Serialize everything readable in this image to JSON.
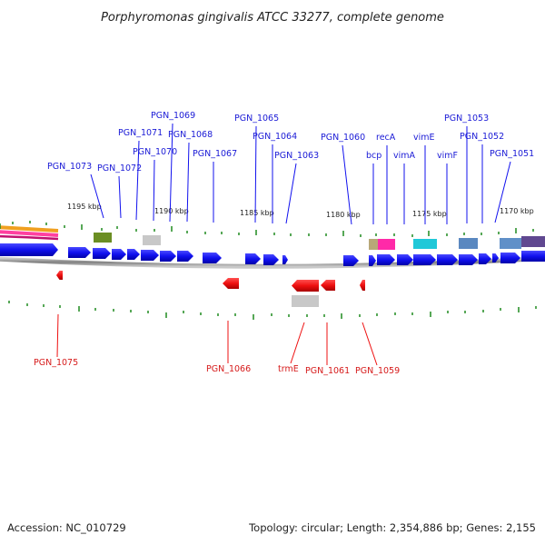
{
  "title": "Porphyromonas gingivalis ATCC 33277, complete genome",
  "footer": {
    "accession": "Accession: NC_010729",
    "summary": "Topology: circular; Length: 2,354,886 bp; Genes: 2,155"
  },
  "colors": {
    "forward": "#1010ee",
    "reverse": "#ee1010",
    "tick": "#1f8a1f",
    "backbone": "#8a8a8a"
  },
  "kbp_labels": [
    "1195 kbp",
    "1190 kbp",
    "1185 kbp",
    "1180 kbp",
    "1175 kbp",
    "1170 kbp"
  ],
  "forward_labels": [
    "PGN_1073",
    "PGN_1072",
    "PGN_1071",
    "PGN_1070",
    "PGN_1069",
    "PGN_1068",
    "PGN_1067",
    "PGN_1065",
    "PGN_1064",
    "PGN_1063",
    "PGN_1060",
    "bcp",
    "recA",
    "vimA",
    "vimE",
    "vimF",
    "PGN_1053",
    "PGN_1052",
    "PGN_1051"
  ],
  "reverse_labels": [
    "PGN_1075",
    "PGN_1066",
    "trmE",
    "PGN_1061",
    "PGN_1059"
  ]
}
